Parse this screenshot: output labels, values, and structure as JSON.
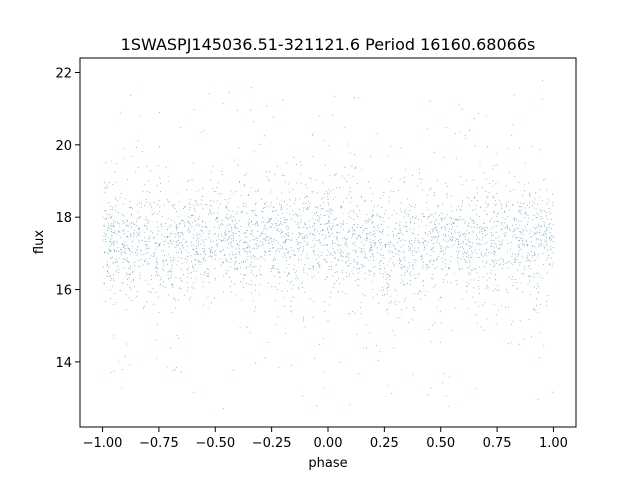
{
  "chart_data": {
    "type": "scatter",
    "title": "1SWASPJ145036.51-321121.6 Period 16160.68066s",
    "xlabel": "phase",
    "ylabel": "flux",
    "xlim": [
      -1.1,
      1.1
    ],
    "ylim": [
      12.2,
      22.4
    ],
    "x_ticks": [
      -1.0,
      -0.75,
      -0.5,
      -0.25,
      0.0,
      0.25,
      0.5,
      0.75,
      1.0
    ],
    "x_tick_labels": [
      "−1.00",
      "−0.75",
      "−0.50",
      "−0.25",
      "0.00",
      "0.25",
      "0.50",
      "0.75",
      "1.00"
    ],
    "y_ticks": [
      14,
      16,
      18,
      20,
      22
    ],
    "y_tick_labels": [
      "14",
      "16",
      "18",
      "20",
      "22"
    ],
    "grid": false,
    "legend": "none",
    "marker_color": "#1f77b4",
    "series": [
      {
        "x_range": [
          -1.0,
          1.0
        ],
        "y_range": [
          12.7,
          22.0
        ],
        "approx_center_flux": 17.3,
        "phase_profile": {
          "x": [
            -1.0,
            -0.75,
            -0.5,
            -0.25,
            0.0,
            0.25,
            0.5,
            0.75,
            1.0
          ],
          "median_flux": [
            17.4,
            17.3,
            17.35,
            17.5,
            17.4,
            17.2,
            17.3,
            17.4,
            17.4
          ]
        }
      }
    ]
  }
}
